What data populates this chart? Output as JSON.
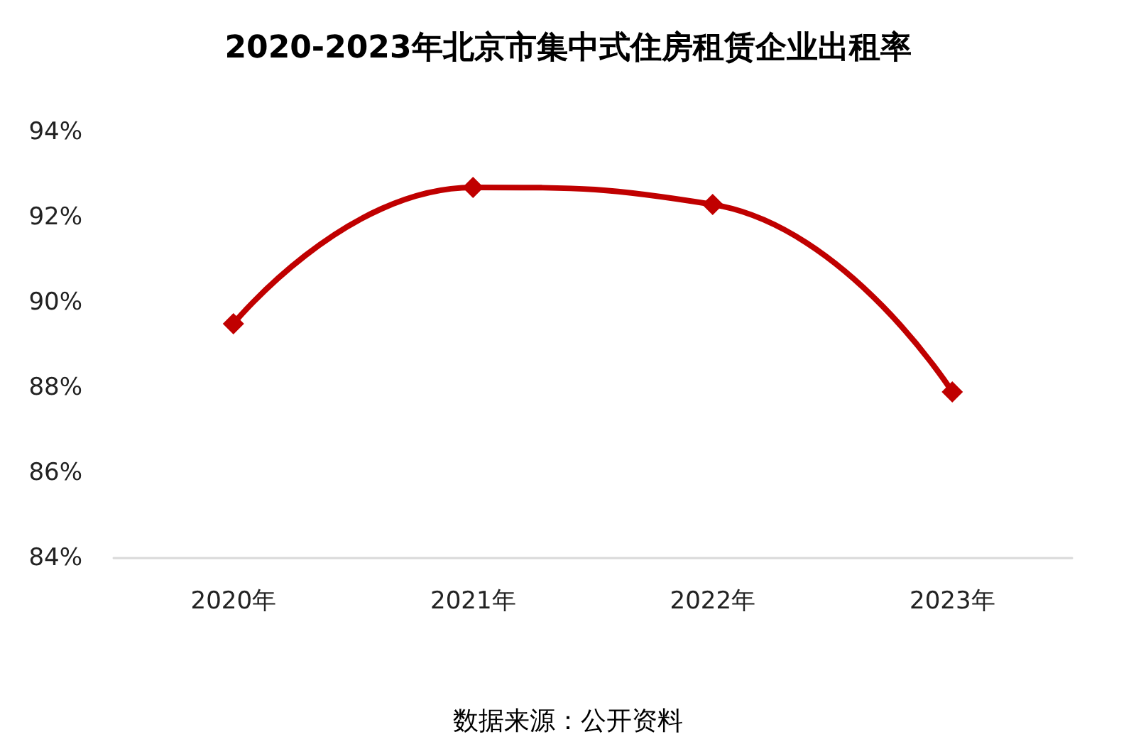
{
  "chart_data": {
    "type": "line",
    "title": "2020-2023年北京市集中式住房租赁企业出租率",
    "categories": [
      "2020年",
      "2021年",
      "2022年",
      "2023年"
    ],
    "series": [
      {
        "color": "#c00000",
        "values": [
          89.5,
          92.7,
          92.3,
          87.9
        ]
      }
    ],
    "ylim": [
      84,
      94
    ],
    "yticks": [
      {
        "value": 84,
        "label": "84%"
      },
      {
        "value": 86,
        "label": "86%"
      },
      {
        "value": 88,
        "label": "88%"
      },
      {
        "value": 90,
        "label": "90%"
      },
      {
        "value": 92,
        "label": "92%"
      },
      {
        "value": 94,
        "label": "94%"
      }
    ],
    "grid": false,
    "marker": "diamond",
    "line_style": "solid",
    "annotations": [
      "数据来源：公开资料"
    ]
  }
}
